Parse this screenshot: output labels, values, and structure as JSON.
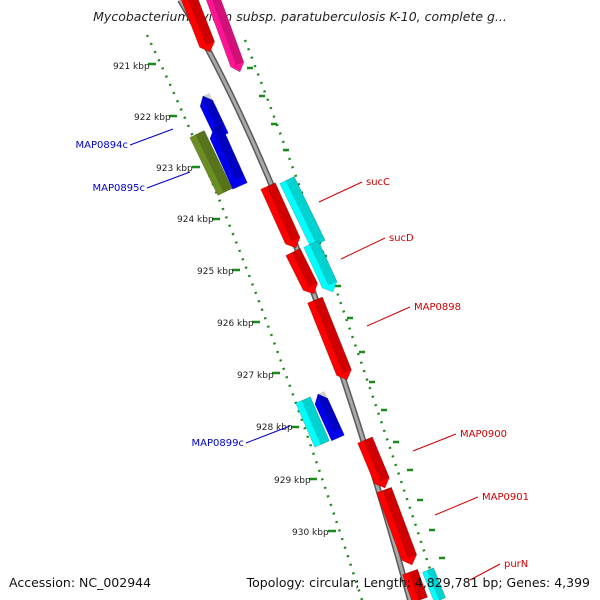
{
  "title": "Mycobacterium avium subsp. paratuberculosis K-10, complete g...",
  "footer": {
    "accession": "Accession: NC_002944",
    "topology": "Topology: circular; Length: 4,829,781 bp; Genes: 4,399"
  },
  "colors": {
    "backbone": "#8a8a8a",
    "ticks": "#1a8a1a",
    "forward_label": "#d00000",
    "reverse_label": "#0000c8",
    "red": "#ff0000",
    "cyan": "#00ffff",
    "blue": "#0000ee",
    "olive": "#6b8e23",
    "magenta": "#ff1493"
  },
  "kbp_ticks": [
    "921 kbp",
    "922 kbp",
    "923 kbp",
    "924 kbp",
    "925 kbp",
    "926 kbp",
    "927 kbp",
    "928 kbp",
    "929 kbp",
    "930 kbp"
  ],
  "genes": [
    {
      "label": "sucC",
      "strand": "forward"
    },
    {
      "label": "sucD",
      "strand": "forward"
    },
    {
      "label": "MAP0898",
      "strand": "forward"
    },
    {
      "label": "MAP0900",
      "strand": "forward"
    },
    {
      "label": "MAP0901",
      "strand": "forward"
    },
    {
      "label": "purN",
      "strand": "forward"
    },
    {
      "label": "MAP0894c",
      "strand": "reverse"
    },
    {
      "label": "MAP0895c",
      "strand": "reverse"
    },
    {
      "label": "MAP0899c",
      "strand": "reverse"
    }
  ]
}
